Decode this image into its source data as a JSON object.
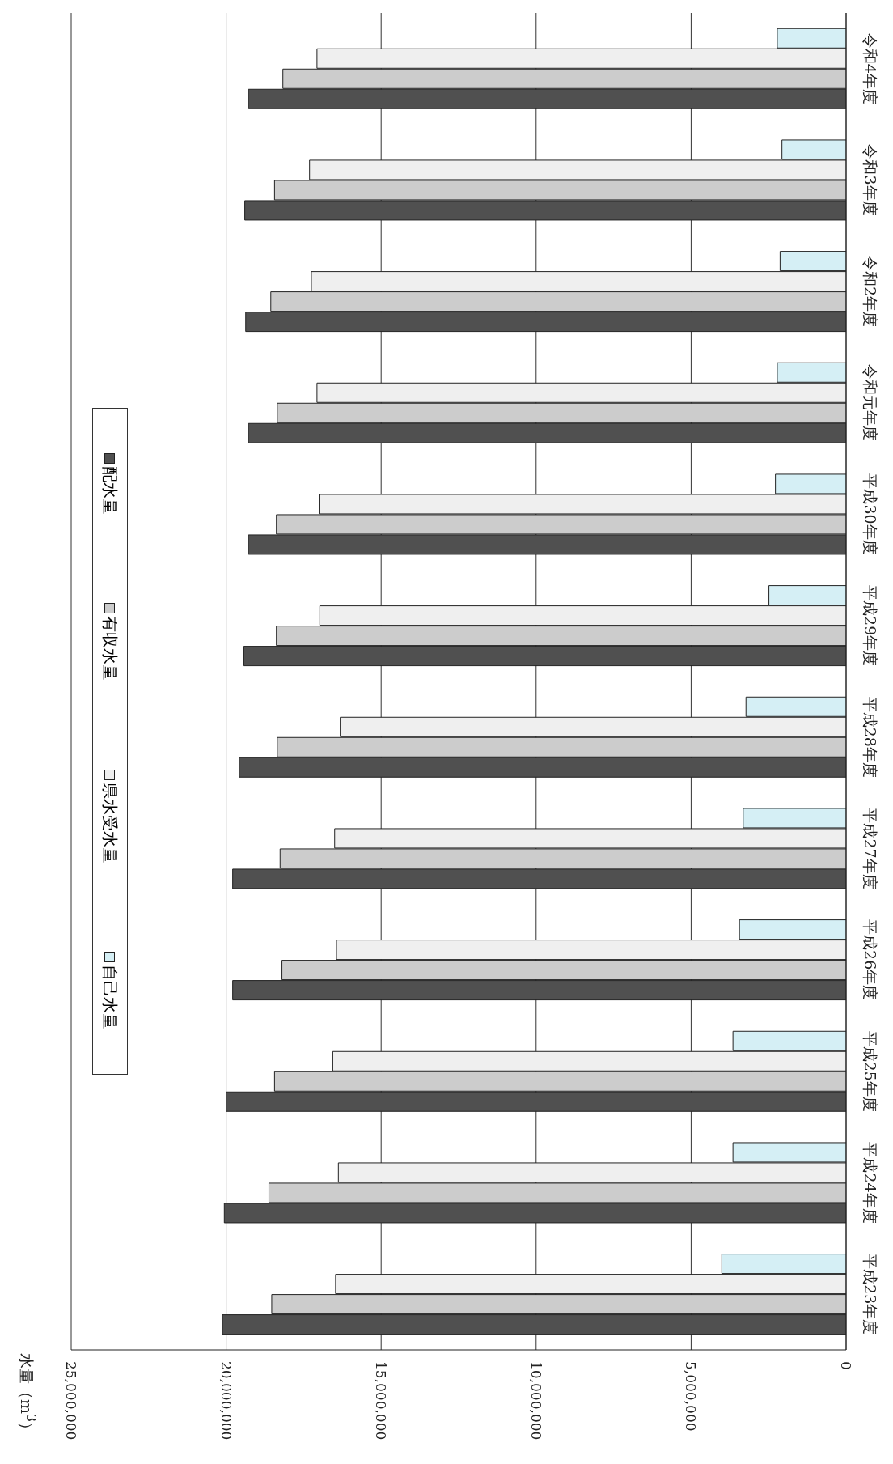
{
  "chart_data": {
    "type": "bar",
    "orientation": "horizontal",
    "ylabel": "水量（m$^{3}$）",
    "categories": [
      "令和4年度",
      "令和3年度",
      "令和2年度",
      "令和元年度",
      "平成30年度",
      "平成29年度",
      "平成28年度",
      "平成27年度",
      "平成26年度",
      "平成25年度",
      "平成24年度",
      "平成23年度"
    ],
    "series": [
      {
        "name": "配水量",
        "color": "#505050",
        "values": [
          19280000,
          19400000,
          19370000,
          19280000,
          19280000,
          19430000,
          19580000,
          19790000,
          19790000,
          20000000,
          20060000,
          20120000
        ]
      },
      {
        "name": "有収水量",
        "color": "#cccccc",
        "values": [
          18170000,
          18440000,
          18560000,
          18350000,
          18380000,
          18380000,
          18350000,
          18260000,
          18200000,
          18440000,
          18620000,
          18530000
        ]
      },
      {
        "name": "県水受水量",
        "color": "#efefef",
        "values": [
          17070000,
          17310000,
          17250000,
          17070000,
          17000000,
          16980000,
          16320000,
          16500000,
          16440000,
          16560000,
          16380000,
          16470000
        ]
      },
      {
        "name": "自己水量",
        "color": "#d5eff5",
        "values": [
          2220000,
          2070000,
          2130000,
          2220000,
          2280000,
          2490000,
          3230000,
          3320000,
          3440000,
          3650000,
          3650000,
          4010000
        ]
      }
    ],
    "xlim": [
      25000000,
      0
    ],
    "xticks": [
      {
        "value": 25000000,
        "label": "25,000,000"
      },
      {
        "value": 20000000,
        "label": "20,000,000"
      },
      {
        "value": 15000000,
        "label": "15,000,000"
      },
      {
        "value": 10000000,
        "label": "10,000,000"
      },
      {
        "value": 5000000,
        "label": "5,000,000"
      },
      0
    ],
    "grid": "x",
    "legend": "left"
  }
}
